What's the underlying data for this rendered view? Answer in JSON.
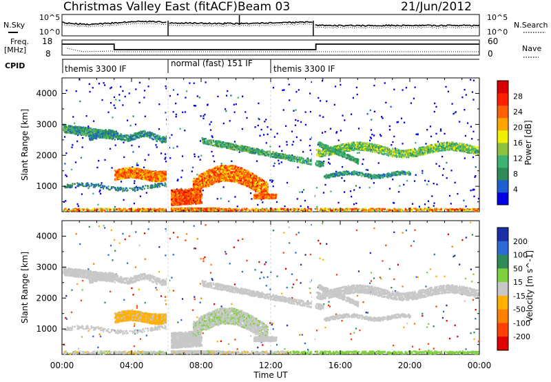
{
  "header": {
    "title": "Christmas Valley East (fitACF)",
    "beam": "Beam 03",
    "date": "21/Jun/2012"
  },
  "noise_panel": {
    "left_label": "N.Sky",
    "right_label": "N.Search",
    "left_ticks": [
      "10^5",
      "10^0"
    ],
    "right_ticks": [
      "10^5",
      "10^0"
    ]
  },
  "freq_panel": {
    "left_label_1": "Freq.",
    "left_label_2": "[MHz]",
    "right_label": "Nave",
    "left_ticks": [
      "18",
      "8"
    ],
    "right_ticks": [
      "60",
      "0"
    ]
  },
  "cpid_panel": {
    "label": "CPID",
    "segments": [
      {
        "name": "themis 3300 IF",
        "start_hour": 0.0,
        "end_hour": 6.1
      },
      {
        "name": "normal (fast) 151 IF",
        "start_hour": 6.1,
        "end_hour": 12.0
      },
      {
        "name": "themis 3300 IF",
        "start_hour": 12.0,
        "end_hour": 24.0
      }
    ]
  },
  "power_colorbar": {
    "label": "Power [dB]",
    "ticks": [
      "4",
      "8",
      "12",
      "16",
      "20",
      "24",
      "28"
    ],
    "colors": [
      "#0000e0",
      "#1e5fd0",
      "#2e8b57",
      "#3cb371",
      "#90c040",
      "#f0f000",
      "#ffa500",
      "#ff6000",
      "#ff2000",
      "#d80000"
    ]
  },
  "velocity_colorbar": {
    "label": "Velocity [m s^-1]",
    "ticks": [
      "200",
      "100",
      "50",
      "15",
      "-15",
      "-50",
      "-100",
      "-200"
    ],
    "colors": [
      "#1b2fa8",
      "#2d6ad8",
      "#2e8b57",
      "#7fd040",
      "#c8c8c8",
      "#ffb000",
      "#ff8000",
      "#ff4000",
      "#e00000"
    ]
  },
  "chart_data": [
    {
      "type": "heatmap",
      "title": "",
      "xlabel": "Time UT",
      "ylabel": "Slant Range [km]",
      "xlim": [
        0,
        24
      ],
      "ylim": [
        180,
        4500
      ],
      "xticks": [
        "00:00",
        "04:00",
        "08:00",
        "12:00",
        "16:00",
        "20:00",
        "00:00"
      ],
      "yticks": [
        "1000",
        "2000",
        "3000",
        "4000"
      ],
      "colorbar": "Power [dB]",
      "features": [
        {
          "name": "sparse scatter",
          "hour_range": [
            0,
            24
          ],
          "range_km": [
            200,
            4500
          ]
        },
        {
          "name": "morning band",
          "hour_range": [
            0,
            3
          ],
          "range_km": [
            2500,
            3100
          ],
          "power_db": 10
        },
        {
          "name": "pre-dawn echo",
          "hour_range": [
            3,
            6
          ],
          "range_km": [
            1100,
            1700
          ],
          "power_db": 24
        },
        {
          "name": "near-range layer",
          "hour_range": [
            6.1,
            7.5
          ],
          "range_km": [
            300,
            1000
          ],
          "power_db": 26
        },
        {
          "name": "daytime patch",
          "hour_range": [
            7.5,
            11.5
          ],
          "range_km": [
            700,
            1600
          ],
          "power_db": 24
        },
        {
          "name": "afternoon band",
          "hour_range": [
            15,
            24
          ],
          "range_km": [
            1900,
            2500
          ],
          "power_db": 14
        },
        {
          "name": "ground scatter floor",
          "hour_range": [
            0,
            24
          ],
          "range_km": [
            180,
            350
          ],
          "power_db": 22
        }
      ]
    },
    {
      "type": "heatmap",
      "title": "",
      "xlabel": "Time UT",
      "ylabel": "Slant Range [km]",
      "xlim": [
        0,
        24
      ],
      "ylim": [
        180,
        4500
      ],
      "xticks": [
        "00:00",
        "04:00",
        "08:00",
        "12:00",
        "16:00",
        "20:00",
        "00:00"
      ],
      "yticks": [
        "1000",
        "2000",
        "3000",
        "4000"
      ],
      "colorbar": "Velocity [m s^-1]",
      "features": [
        {
          "name": "morning band",
          "hour_range": [
            0,
            3
          ],
          "range_km": [
            2500,
            3100
          ],
          "velocity": 0
        },
        {
          "name": "pre-dawn echo",
          "hour_range": [
            3,
            6
          ],
          "range_km": [
            1100,
            1700
          ],
          "velocity": -20
        },
        {
          "name": "daytime patch",
          "hour_range": [
            7.5,
            11.5
          ],
          "range_km": [
            700,
            1600
          ],
          "velocity": 10
        },
        {
          "name": "afternoon band",
          "hour_range": [
            15,
            24
          ],
          "range_km": [
            1900,
            2500
          ],
          "velocity": 0
        },
        {
          "name": "near-range floor",
          "hour_range": [
            14,
            24
          ],
          "range_km": [
            180,
            350
          ],
          "velocity": 30
        }
      ]
    }
  ]
}
